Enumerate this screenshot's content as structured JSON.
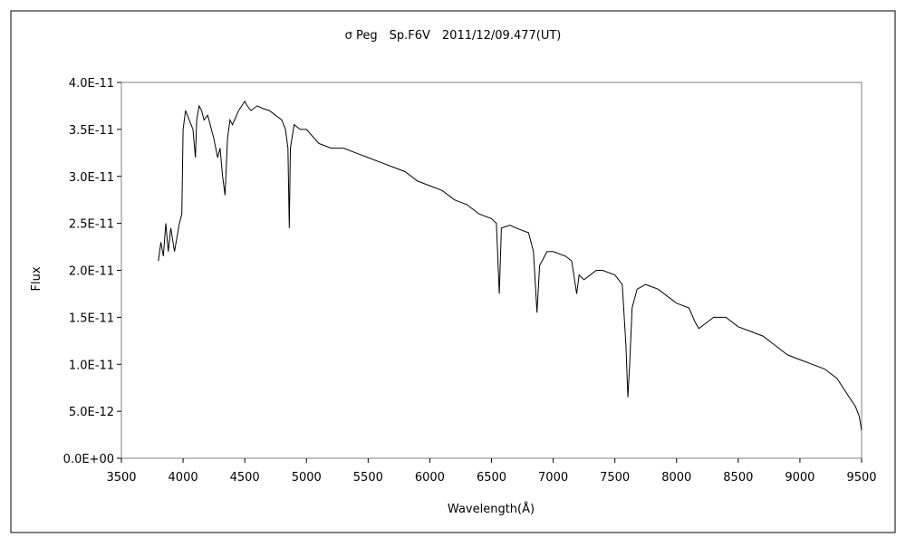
{
  "chart_data": {
    "type": "line",
    "title": "σ Peg　Sp.F6V　2011/12/09.477(UT)",
    "xlabel": "Wavelength(Å)",
    "ylabel": "Flux",
    "xlim": [
      3500,
      9500
    ],
    "ylim": [
      0,
      4e-11
    ],
    "x_ticks": [
      "3500",
      "4000",
      "4500",
      "5000",
      "5500",
      "6000",
      "6500",
      "7000",
      "7500",
      "8000",
      "8500",
      "9000",
      "9500"
    ],
    "y_ticks": [
      "0.0E+00",
      "5.0E-12",
      "1.0E-11",
      "1.5E-11",
      "2.0E-11",
      "2.5E-11",
      "3.0E-11",
      "3.5E-11",
      "4.0E-11"
    ],
    "grid": false,
    "legend": "none",
    "series": [
      {
        "color": "#000000",
        "x": [
          3800,
          3820,
          3840,
          3860,
          3880,
          3900,
          3930,
          3950,
          3970,
          3990,
          4000,
          4020,
          4050,
          4080,
          4100,
          4110,
          4130,
          4150,
          4170,
          4200,
          4250,
          4280,
          4300,
          4320,
          4340,
          4360,
          4380,
          4400,
          4450,
          4500,
          4520,
          4550,
          4600,
          4650,
          4700,
          4750,
          4800,
          4830,
          4850,
          4861,
          4870,
          4900,
          4950,
          5000,
          5100,
          5200,
          5300,
          5400,
          5500,
          5600,
          5700,
          5800,
          5900,
          6000,
          6100,
          6200,
          6300,
          6400,
          6500,
          6540,
          6563,
          6580,
          6650,
          6700,
          6800,
          6840,
          6869,
          6890,
          6950,
          7000,
          7100,
          7150,
          7190,
          7210,
          7250,
          7300,
          7350,
          7400,
          7500,
          7560,
          7590,
          7605,
          7620,
          7640,
          7680,
          7750,
          7850,
          8000,
          8100,
          8150,
          8180,
          8250,
          8300,
          8400,
          8500,
          8600,
          8700,
          8800,
          8900,
          9000,
          9100,
          9200,
          9300,
          9400,
          9450,
          9480,
          9500
        ],
        "values": [
          2.1e-11,
          2.3e-11,
          2.15e-11,
          2.5e-11,
          2.2e-11,
          2.45e-11,
          2.2e-11,
          2.35e-11,
          2.5e-11,
          2.6e-11,
          3.5e-11,
          3.7e-11,
          3.6e-11,
          3.5e-11,
          3.2e-11,
          3.6e-11,
          3.75e-11,
          3.7e-11,
          3.6e-11,
          3.65e-11,
          3.4e-11,
          3.2e-11,
          3.3e-11,
          3e-11,
          2.8e-11,
          3.4e-11,
          3.6e-11,
          3.55e-11,
          3.7e-11,
          3.8e-11,
          3.75e-11,
          3.7e-11,
          3.75e-11,
          3.72e-11,
          3.7e-11,
          3.65e-11,
          3.6e-11,
          3.5e-11,
          3.3e-11,
          2.45e-11,
          3.3e-11,
          3.55e-11,
          3.5e-11,
          3.5e-11,
          3.35e-11,
          3.3e-11,
          3.3e-11,
          3.25e-11,
          3.2e-11,
          3.15e-11,
          3.1e-11,
          3.05e-11,
          2.95e-11,
          2.9e-11,
          2.85e-11,
          2.75e-11,
          2.7e-11,
          2.6e-11,
          2.55e-11,
          2.5e-11,
          1.75e-11,
          2.45e-11,
          2.48e-11,
          2.45e-11,
          2.4e-11,
          2.2e-11,
          1.55e-11,
          2.05e-11,
          2.2e-11,
          2.2e-11,
          2.15e-11,
          2.1e-11,
          1.75e-11,
          1.95e-11,
          1.9e-11,
          1.95e-11,
          2e-11,
          2e-11,
          1.95e-11,
          1.85e-11,
          1.2e-11,
          6.5e-12,
          1e-11,
          1.6e-11,
          1.8e-11,
          1.85e-11,
          1.8e-11,
          1.65e-11,
          1.6e-11,
          1.45e-11,
          1.38e-11,
          1.45e-11,
          1.5e-11,
          1.5e-11,
          1.4e-11,
          1.35e-11,
          1.3e-11,
          1.2e-11,
          1.1e-11,
          1.05e-11,
          1e-11,
          9.5e-12,
          8.5e-12,
          6.5e-12,
          5.5e-12,
          4.5e-12,
          3e-12
        ]
      }
    ]
  }
}
